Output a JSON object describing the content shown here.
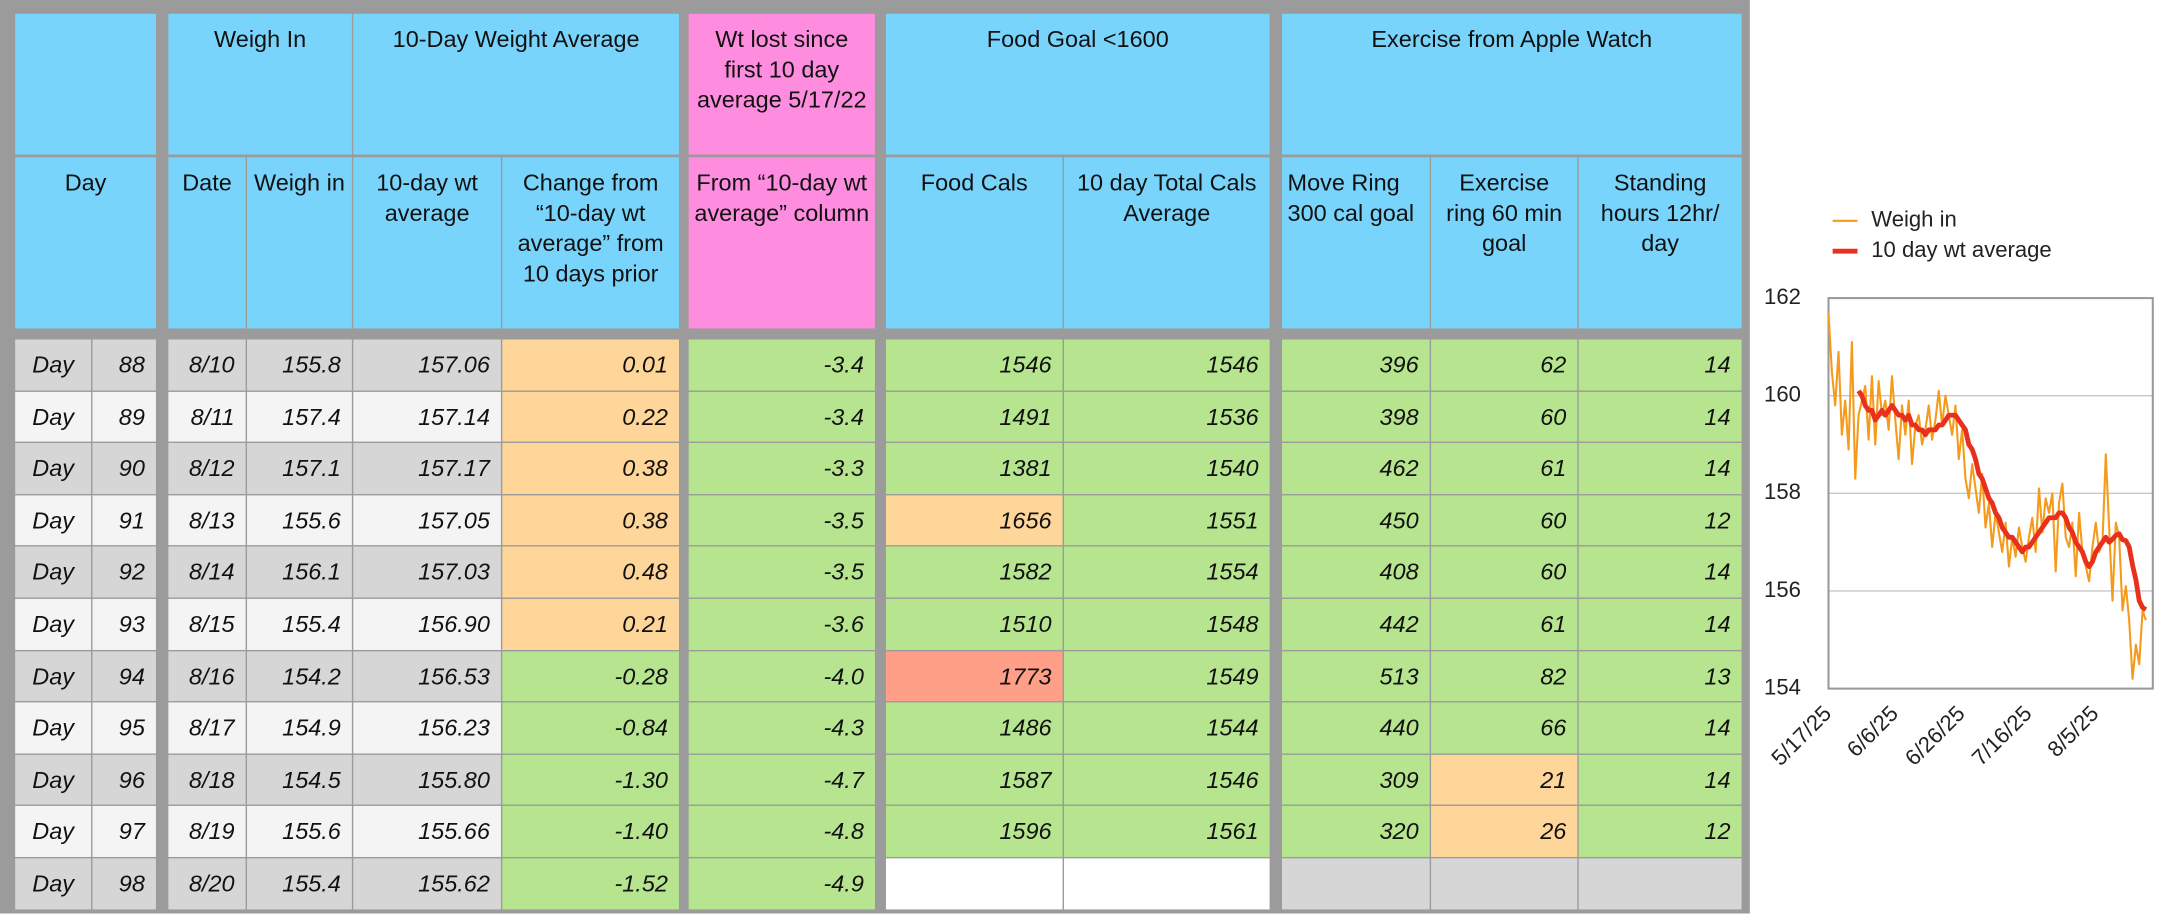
{
  "table": {
    "group_headers": [
      "Weigh In",
      "10-Day Weight Average",
      "Wt lost since first 10 day average 5/17/22",
      "Food Goal <1600",
      "Exercise from Apple Watch"
    ],
    "column_headers": [
      "Day",
      "Date",
      "Weigh in",
      "10-day wt average",
      "Change from “10-day wt average” from 10 days prior",
      "From “10-day wt average” column",
      "Food Cals",
      "10 day Total Cals Average",
      "Move Ring 300 cal goal",
      "Exercise ring 60 min goal",
      "Standing hours 12hr/ day"
    ],
    "rows": [
      [
        "Day",
        "88",
        "8/10",
        "155.8",
        "157.06",
        "0.01",
        "-3.4",
        "1546",
        "1546",
        "396",
        "62",
        "14"
      ],
      [
        "Day",
        "89",
        "8/11",
        "157.4",
        "157.14",
        "0.22",
        "-3.4",
        "1491",
        "1536",
        "398",
        "60",
        "14"
      ],
      [
        "Day",
        "90",
        "8/12",
        "157.1",
        "157.17",
        "0.38",
        "-3.3",
        "1381",
        "1540",
        "462",
        "61",
        "14"
      ],
      [
        "Day",
        "91",
        "8/13",
        "155.6",
        "157.05",
        "0.38",
        "-3.5",
        "1656",
        "1551",
        "450",
        "60",
        "12"
      ],
      [
        "Day",
        "92",
        "8/14",
        "156.1",
        "157.03",
        "0.48",
        "-3.5",
        "1582",
        "1554",
        "408",
        "60",
        "14"
      ],
      [
        "Day",
        "93",
        "8/15",
        "155.4",
        "156.90",
        "0.21",
        "-3.6",
        "1510",
        "1548",
        "442",
        "61",
        "14"
      ],
      [
        "Day",
        "94",
        "8/16",
        "154.2",
        "156.53",
        "-0.28",
        "-4.0",
        "1773",
        "1549",
        "513",
        "82",
        "13"
      ],
      [
        "Day",
        "95",
        "8/17",
        "154.9",
        "156.23",
        "-0.84",
        "-4.3",
        "1486",
        "1544",
        "440",
        "66",
        "14"
      ],
      [
        "Day",
        "96",
        "8/18",
        "154.5",
        "155.80",
        "-1.30",
        "-4.7",
        "1587",
        "1546",
        "309",
        "21",
        "14"
      ],
      [
        "Day",
        "97",
        "8/19",
        "155.6",
        "155.66",
        "-1.40",
        "-4.8",
        "1596",
        "1561",
        "320",
        "26",
        "12"
      ],
      [
        "Day",
        "98",
        "8/20",
        "155.4",
        "155.62",
        "-1.52",
        "-4.9"
      ]
    ]
  },
  "chart": {
    "type": "line",
    "x": [
      "5/17/25",
      "5/18/25",
      "5/19/25",
      "5/20/25",
      "5/21/25",
      "5/22/25",
      "5/23/25",
      "5/24/25",
      "5/25/25",
      "5/26/25",
      "5/27/25",
      "5/28/25",
      "5/29/25",
      "5/30/25",
      "5/31/25",
      "6/1/25",
      "6/2/25",
      "6/3/25",
      "6/4/25",
      "6/5/25",
      "6/6/25",
      "6/7/25",
      "6/8/25",
      "6/9/25",
      "6/10/25",
      "6/11/25",
      "6/12/25",
      "6/13/25",
      "6/14/25",
      "6/15/25",
      "6/16/25",
      "6/17/25",
      "6/18/25",
      "6/19/25",
      "6/20/25",
      "6/21/25",
      "6/22/25",
      "6/23/25",
      "6/24/25",
      "6/25/25",
      "6/26/25",
      "6/27/25",
      "6/28/25",
      "6/29/25",
      "6/30/25",
      "7/1/25",
      "7/2/25",
      "7/3/25",
      "7/4/25",
      "7/5/25",
      "7/6/25",
      "7/7/25",
      "7/8/25",
      "7/9/25",
      "7/10/25",
      "7/11/25",
      "7/12/25",
      "7/13/25",
      "7/14/25",
      "7/15/25",
      "7/16/25",
      "7/17/25",
      "7/18/25",
      "7/19/25",
      "7/20/25",
      "7/21/25",
      "7/22/25",
      "7/23/25",
      "7/24/25",
      "7/25/25",
      "7/26/25",
      "7/27/25",
      "7/28/25",
      "7/29/25",
      "7/30/25",
      "7/31/25",
      "8/1/25",
      "8/2/25",
      "8/3/25",
      "8/4/25",
      "8/5/25",
      "8/6/25",
      "8/7/25",
      "8/8/25",
      "8/9/25",
      "8/10/25",
      "8/11/25",
      "8/12/25",
      "8/13/25",
      "8/14/25",
      "8/15/25",
      "8/16/25",
      "8/17/25",
      "8/18/25",
      "8/19/25",
      "8/20/25"
    ],
    "series": [
      {
        "name": "Weigh in",
        "color": "#f59a1a",
        "values": [
          161.7,
          160.5,
          159.8,
          160.9,
          159.2,
          159.9,
          158.9,
          161.1,
          158.3,
          159.6,
          159.9,
          160.2,
          159.1,
          160.4,
          159.0,
          160.3,
          159.6,
          159.9,
          159.3,
          160.4,
          159.5,
          158.7,
          159.8,
          159.2,
          159.9,
          158.6,
          159.4,
          159.6,
          159.0,
          159.3,
          159.8,
          159.1,
          159.5,
          160.1,
          159.4,
          160.0,
          159.6,
          159.2,
          159.8,
          158.7,
          159.3,
          158.3,
          157.9,
          158.6,
          158.1,
          157.6,
          158.4,
          157.3,
          157.8,
          156.9,
          157.6,
          157.2,
          156.8,
          157.4,
          156.5,
          157.1,
          156.7,
          157.3,
          156.9,
          156.6,
          157.1,
          157.5,
          156.8,
          158.1,
          157.2,
          157.9,
          157.6,
          158.0,
          156.4,
          157.8,
          158.2,
          157.1,
          156.9,
          157.4,
          156.3,
          157.6,
          156.8,
          156.5,
          156.2,
          156.9,
          157.4,
          156.8,
          157.0,
          158.8,
          157.3,
          155.8,
          157.4,
          157.1,
          155.6,
          156.1,
          155.4,
          154.2,
          154.9,
          154.5,
          155.6,
          155.4
        ]
      },
      {
        "name": "10 day wt average",
        "color": "#e8301c",
        "values": [
          null,
          null,
          null,
          null,
          null,
          null,
          null,
          null,
          null,
          160.1,
          160.0,
          159.8,
          159.7,
          159.7,
          159.5,
          159.6,
          159.7,
          159.6,
          159.7,
          159.8,
          159.7,
          159.6,
          159.6,
          159.5,
          159.6,
          159.4,
          159.4,
          159.3,
          159.3,
          159.2,
          159.3,
          159.3,
          159.3,
          159.4,
          159.4,
          159.5,
          159.6,
          159.6,
          159.6,
          159.5,
          159.4,
          159.3,
          159.0,
          158.9,
          158.7,
          158.4,
          158.3,
          158.1,
          157.9,
          157.8,
          157.6,
          157.5,
          157.3,
          157.2,
          157.1,
          157.1,
          157.0,
          156.9,
          156.8,
          156.9,
          156.9,
          157.0,
          157.1,
          157.2,
          157.3,
          157.4,
          157.5,
          157.5,
          157.5,
          157.6,
          157.6,
          157.5,
          157.3,
          157.2,
          157.0,
          156.9,
          156.8,
          156.6,
          156.5,
          156.6,
          156.8,
          156.9,
          157.0,
          157.1,
          157.0,
          157.06,
          157.14,
          157.17,
          157.05,
          157.03,
          156.9,
          156.53,
          156.23,
          155.8,
          155.66,
          155.62
        ]
      }
    ],
    "ylim": [
      154,
      162
    ],
    "yticks": [
      154,
      156,
      158,
      160,
      162
    ],
    "xticks": [
      "5/17/25",
      "6/6/25",
      "6/26/25",
      "7/16/25",
      "8/5/25"
    ],
    "grid": true,
    "legend": "top-left"
  }
}
